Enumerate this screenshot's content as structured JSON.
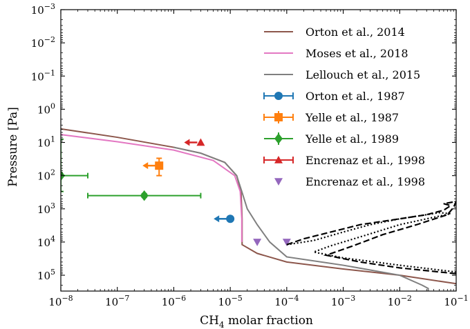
{
  "chart_data": {
    "type": "line",
    "xlabel_main": "CH",
    "xlabel_sub": "4",
    "xlabel_rest": " molar fraction",
    "ylabel": "Pressure [Pa]",
    "x_scale": "log",
    "y_scale": "log",
    "y_inverted": true,
    "xlim": [
      1e-08,
      0.1
    ],
    "ylim": [
      300000.0,
      0.001
    ],
    "x_ticks": [
      {
        "value": 1e-08,
        "base": "10",
        "exp": "−8"
      },
      {
        "value": 1e-07,
        "base": "10",
        "exp": "−7"
      },
      {
        "value": 1e-06,
        "base": "10",
        "exp": "−6"
      },
      {
        "value": 1e-05,
        "base": "10",
        "exp": "−5"
      },
      {
        "value": 0.0001,
        "base": "10",
        "exp": "−4"
      },
      {
        "value": 0.001,
        "base": "10",
        "exp": "−3"
      },
      {
        "value": 0.01,
        "base": "10",
        "exp": "−2"
      },
      {
        "value": 0.1,
        "base": "10",
        "exp": "−1"
      }
    ],
    "y_ticks": [
      {
        "value": 0.001,
        "base": "10",
        "exp": "−3"
      },
      {
        "value": 0.01,
        "base": "10",
        "exp": "−2"
      },
      {
        "value": 0.1,
        "base": "10",
        "exp": "−1"
      },
      {
        "value": 1,
        "base": "10",
        "exp": "0"
      },
      {
        "value": 10,
        "base": "10",
        "exp": "1"
      },
      {
        "value": 100,
        "base": "10",
        "exp": "2"
      },
      {
        "value": 1000,
        "base": "10",
        "exp": "3"
      },
      {
        "value": 10000,
        "base": "10",
        "exp": "4"
      },
      {
        "value": 100000,
        "base": "10",
        "exp": "5"
      }
    ],
    "legend_position": "top-right",
    "series": [
      {
        "name": "Orton et al., 2014",
        "kind": "line",
        "color": "#8c564b",
        "points": [
          [
            1e-08,
            3.9
          ],
          [
            1e-07,
            7
          ],
          [
            1e-06,
            14
          ],
          [
            3e-06,
            21
          ],
          [
            8e-06,
            40
          ],
          [
            1.3e-05,
            100
          ],
          [
            1.55e-05,
            300
          ],
          [
            1.62e-05,
            2000
          ],
          [
            1.62e-05,
            12000
          ],
          [
            3e-05,
            22000
          ],
          [
            0.0001,
            40000
          ],
          [
            0.001,
            65000
          ],
          [
            0.01,
            100000
          ],
          [
            0.1,
            180000
          ]
        ]
      },
      {
        "name": "Moses et al., 2018",
        "kind": "line",
        "color": "#e377c2",
        "points": [
          [
            1e-08,
            5.8
          ],
          [
            1e-07,
            9.5
          ],
          [
            1e-06,
            17
          ],
          [
            5e-06,
            35
          ],
          [
            1.2e-05,
            100
          ],
          [
            1.5e-05,
            300
          ],
          [
            1.6e-05,
            2000
          ],
          [
            1.6e-05,
            10000
          ]
        ]
      },
      {
        "name": "Lellouch et al., 2015",
        "kind": "line",
        "color": "#7f7f7f",
        "points": [
          [
            1e-06,
            14
          ],
          [
            3e-06,
            21
          ],
          [
            8e-06,
            40
          ],
          [
            1.3e-05,
            100
          ],
          [
            1.6e-05,
            300
          ],
          [
            2e-05,
            1000
          ],
          [
            3e-05,
            3000
          ],
          [
            5e-05,
            10000
          ],
          [
            0.0001,
            28000
          ],
          [
            0.001,
            50000
          ],
          [
            0.01,
            100000
          ],
          [
            0.025,
            200000
          ],
          [
            0.032,
            250000
          ],
          [
            0.032,
            300000
          ]
        ]
      },
      {
        "name": "Orton et al., 1987",
        "kind": "marker",
        "marker": "circle",
        "color": "#1f77b4",
        "x": 1e-05,
        "y": 2000,
        "arrow": "left"
      },
      {
        "name": "Yelle et al., 1987",
        "kind": "marker",
        "marker": "square",
        "color": "#ff7f0e",
        "x": 5.5e-07,
        "y": 50,
        "y_err": [
          30,
          100
        ],
        "arrow": "left"
      },
      {
        "name": "Yelle et al., 1989",
        "kind": "marker",
        "marker": "diamond",
        "color": "#2ca02c",
        "points": [
          {
            "x": 1e-08,
            "y": 100,
            "x_err": [
              1e-08,
              3e-08
            ],
            "y_err": [
              8,
              300
            ]
          },
          {
            "x": 3e-07,
            "y": 400,
            "x_err": [
              3e-08,
              3e-06
            ],
            "y_err": [
              350,
              450
            ]
          }
        ]
      },
      {
        "name": "Encrenaz et al., 1998",
        "kind": "marker",
        "marker": "triangle-up",
        "color": "#d62728",
        "x": 3e-06,
        "y": 10,
        "arrow": "left"
      },
      {
        "name": "Encrenaz et al., 1998",
        "kind": "marker",
        "marker": "triangle-down",
        "color": "#9467bd",
        "points": [
          {
            "x": 3e-05,
            "y": 10000
          },
          {
            "x": 0.0001,
            "y": 10000
          }
        ]
      },
      {
        "name": "",
        "kind": "line",
        "style": "dashed",
        "color": "#000000",
        "points": [
          [
            0.0001,
            12000
          ],
          [
            0.0002,
            8000
          ],
          [
            0.0006,
            5000
          ],
          [
            0.002,
            3000
          ],
          [
            0.01,
            2000
          ],
          [
            0.03,
            1500
          ],
          [
            0.06,
            1100
          ],
          [
            0.08,
            800
          ],
          [
            0.06,
            700
          ],
          [
            0.1,
            600
          ],
          [
            0.09,
            900
          ],
          [
            0.07,
            1500
          ],
          [
            0.02,
            3000
          ],
          [
            0.005,
            6000
          ],
          [
            0.0015,
            13000
          ],
          [
            0.0005,
            25000
          ],
          [
            0.002,
            40000
          ],
          [
            0.01,
            60000
          ],
          [
            0.1,
            90000
          ]
        ]
      },
      {
        "name": "",
        "kind": "line",
        "style": "dotted",
        "color": "#000000",
        "points": [
          [
            0.0001,
            12000
          ],
          [
            0.0003,
            9000
          ],
          [
            0.001,
            5000
          ],
          [
            0.003,
            3000
          ],
          [
            0.01,
            2000
          ],
          [
            0.03,
            1500
          ],
          [
            0.05,
            1300
          ],
          [
            0.08,
            1400
          ],
          [
            0.03,
            2000
          ],
          [
            0.01,
            3000
          ],
          [
            0.002,
            7000
          ],
          [
            0.0006,
            13000
          ],
          [
            0.0003,
            20000
          ],
          [
            0.001,
            30000
          ],
          [
            0.01,
            50000
          ],
          [
            0.1,
            80000
          ]
        ]
      }
    ]
  }
}
